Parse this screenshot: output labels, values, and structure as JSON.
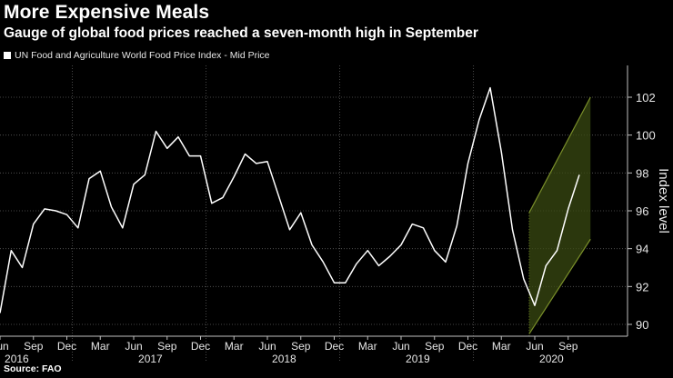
{
  "header": {
    "title": "More Expensive Meals",
    "subtitle": "Gauge of global food prices reached a seven-month high in September"
  },
  "legend": {
    "label": "UN Food and Agriculture World Food Price Index - Mid Price"
  },
  "footer": {
    "source": "Source: FAO"
  },
  "colors": {
    "background": "#000000",
    "line": "#ffffff",
    "grid": "#5a5a5a",
    "channel_fill": "#3a4a12",
    "channel_stroke": "#7a8f2a"
  },
  "chart_data": {
    "type": "line",
    "title": "More Expensive Meals",
    "ylabel": "Index level",
    "xlabel": "",
    "ylim": [
      89.5,
      103.5
    ],
    "yticks": [
      90,
      92,
      94,
      96,
      98,
      100,
      102
    ],
    "start_index": 0,
    "series": [
      {
        "name": "UN Food and Agriculture World Food Price Index - Mid Price",
        "values": [
          90.6,
          93.9,
          93.0,
          95.3,
          96.1,
          96.0,
          95.8,
          95.1,
          97.7,
          98.1,
          96.2,
          95.1,
          97.4,
          97.9,
          100.2,
          99.3,
          99.9,
          98.9,
          98.9,
          96.4,
          96.7,
          97.8,
          99.0,
          98.5,
          98.6,
          96.8,
          95.0,
          95.9,
          94.2,
          93.3,
          92.2,
          92.2,
          93.2,
          93.9,
          93.1,
          93.6,
          94.2,
          95.3,
          95.1,
          93.9,
          93.3,
          95.2,
          98.5,
          100.8,
          102.5,
          99.1,
          95.0,
          92.4,
          91.0,
          93.1,
          93.9,
          96.1,
          97.9
        ]
      }
    ],
    "x_month_labels": [
      {
        "index": 0,
        "label": "Jun"
      },
      {
        "index": 3,
        "label": "Sep"
      },
      {
        "index": 6,
        "label": "Dec"
      },
      {
        "index": 9,
        "label": "Mar"
      },
      {
        "index": 12,
        "label": "Jun"
      },
      {
        "index": 15,
        "label": "Sep"
      },
      {
        "index": 18,
        "label": "Dec"
      },
      {
        "index": 21,
        "label": "Mar"
      },
      {
        "index": 24,
        "label": "Jun"
      },
      {
        "index": 27,
        "label": "Sep"
      },
      {
        "index": 30,
        "label": "Dec"
      },
      {
        "index": 33,
        "label": "Mar"
      },
      {
        "index": 36,
        "label": "Jun"
      },
      {
        "index": 39,
        "label": "Sep"
      },
      {
        "index": 42,
        "label": "Dec"
      },
      {
        "index": 45,
        "label": "Mar"
      },
      {
        "index": 48,
        "label": "Jun"
      },
      {
        "index": 51,
        "label": "Sep"
      }
    ],
    "x_year_labels": [
      {
        "index": 1.5,
        "label": "2016"
      },
      {
        "index": 13.5,
        "label": "2017"
      },
      {
        "index": 25.5,
        "label": "2018"
      },
      {
        "index": 37.5,
        "label": "2019"
      },
      {
        "index": 49.5,
        "label": "2020"
      }
    ],
    "year_divider_indices": [
      6.5,
      18.5,
      30.5,
      42.5
    ],
    "trend_channel": {
      "start_index": 47.5,
      "end_index": 53.0,
      "upper": [
        95.9,
        102.0
      ],
      "lower": [
        89.5,
        94.5
      ]
    }
  }
}
